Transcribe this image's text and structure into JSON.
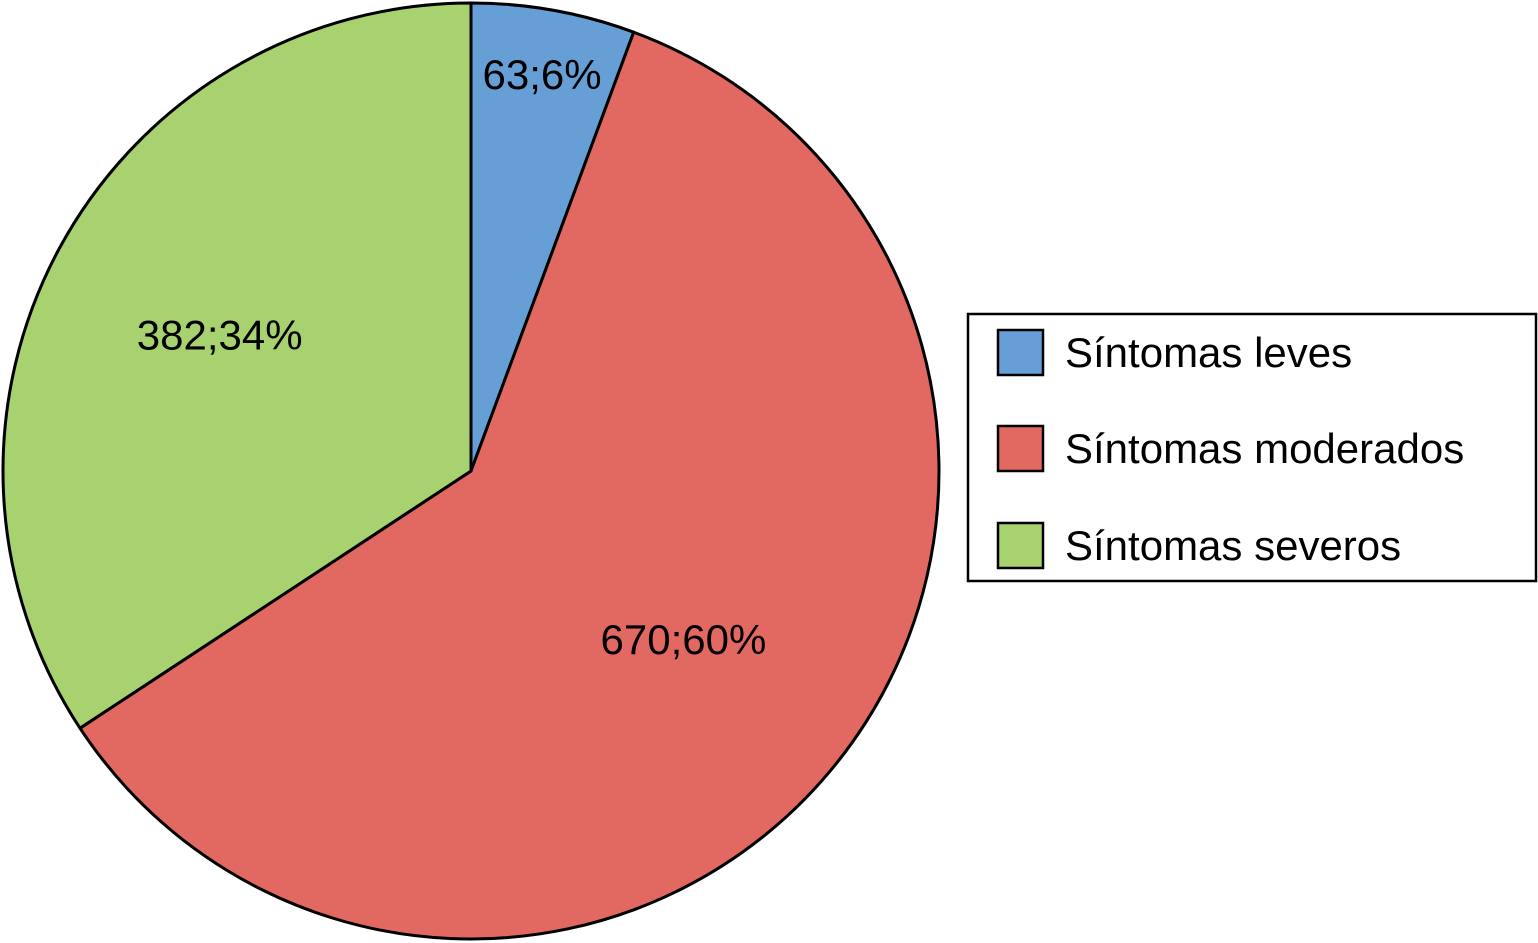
{
  "chart_data": {
    "type": "pie",
    "categories": [
      "Síntomas leves",
      "Síntomas moderados",
      "Síntomas severos"
    ],
    "values": [
      63,
      670,
      382
    ],
    "percentages": [
      6,
      60,
      34
    ],
    "data_labels": [
      "63;6%",
      "670;60%",
      "382;34%"
    ],
    "colors": [
      "#659fd6",
      "#e26862",
      "#a8d170"
    ],
    "start": "12 o'clock",
    "direction": "clockwise",
    "legend": {
      "position": "right",
      "entries": [
        "Síntomas leves",
        "Síntomas moderados",
        "Síntomas severos"
      ]
    }
  }
}
